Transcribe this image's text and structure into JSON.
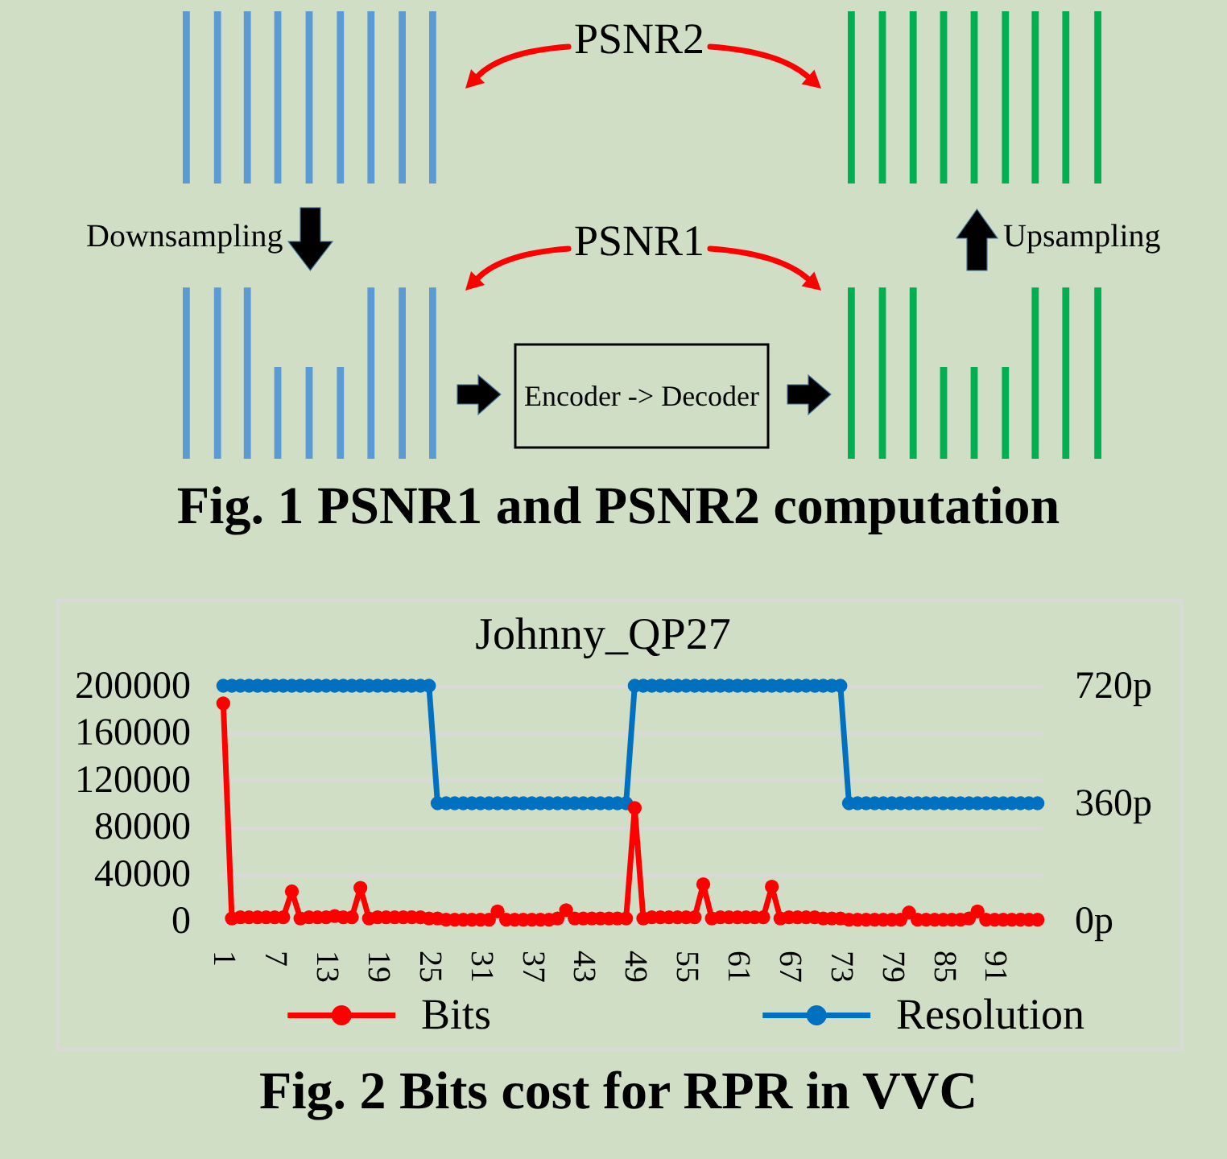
{
  "chart_data": [
    {
      "type": "other",
      "title": "Fig. 1 PSNR1 and PSNR2 computation",
      "annotations": [
        "PSNR2",
        "PSNR1",
        "Downsampling",
        "Upsampling",
        "Encoder -> Decoder"
      ]
    },
    {
      "type": "line",
      "title": "Johnny_QP27",
      "categories": [
        "1",
        null,
        null,
        null,
        null,
        null,
        "7",
        null,
        null,
        null,
        null,
        null,
        "13",
        null,
        null,
        null,
        null,
        null,
        "19",
        null,
        null,
        null,
        null,
        null,
        "25",
        null,
        null,
        null,
        null,
        null,
        "31",
        null,
        null,
        null,
        null,
        null,
        "37",
        null,
        null,
        null,
        null,
        null,
        "43",
        null,
        null,
        null,
        null,
        null,
        "49",
        null,
        null,
        null,
        null,
        null,
        "55",
        null,
        null,
        null,
        null,
        null,
        "61",
        null,
        null,
        null,
        null,
        null,
        "67",
        null,
        null,
        null,
        null,
        null,
        "73",
        null,
        null,
        null,
        null,
        null,
        "79",
        null,
        null,
        null,
        null,
        null,
        "85",
        null,
        null,
        null,
        null,
        null,
        "91",
        null,
        null,
        null,
        null,
        null
      ],
      "series": [
        {
          "name": "Bits",
          "color": "#ff0000",
          "values": [
            185000,
            2000,
            3000,
            3000,
            3000,
            3000,
            3000,
            3000,
            25000,
            2000,
            3000,
            3000,
            3000,
            4000,
            3000,
            3000,
            28000,
            2000,
            3000,
            3000,
            3000,
            3000,
            3000,
            3000,
            2000,
            2000,
            1000,
            1000,
            1000,
            1000,
            1000,
            1000,
            8000,
            1000,
            1000,
            1000,
            1000,
            1000,
            1000,
            2000,
            9000,
            2000,
            2000,
            2000,
            2000,
            2000,
            2000,
            2000,
            96000,
            2000,
            3000,
            3000,
            3000,
            3000,
            3000,
            3000,
            31000,
            2000,
            3000,
            3000,
            3000,
            3000,
            3000,
            3000,
            29000,
            2000,
            3000,
            3000,
            3000,
            3000,
            2000,
            2000,
            2000,
            1000,
            1000,
            1000,
            1000,
            1000,
            1000,
            1000,
            7000,
            1000,
            1000,
            1000,
            1000,
            1000,
            1000,
            2000,
            8000,
            1000,
            1000,
            1000,
            1000,
            1000,
            1000,
            1000
          ]
        },
        {
          "name": "Resolution",
          "color": "#0070c0",
          "axis": "y2",
          "values": [
            720,
            720,
            720,
            720,
            720,
            720,
            720,
            720,
            720,
            720,
            720,
            720,
            720,
            720,
            720,
            720,
            720,
            720,
            720,
            720,
            720,
            720,
            720,
            720,
            720,
            360,
            360,
            360,
            360,
            360,
            360,
            360,
            360,
            360,
            360,
            360,
            360,
            360,
            360,
            360,
            360,
            360,
            360,
            360,
            360,
            360,
            360,
            360,
            720,
            720,
            720,
            720,
            720,
            720,
            720,
            720,
            720,
            720,
            720,
            720,
            720,
            720,
            720,
            720,
            720,
            720,
            720,
            720,
            720,
            720,
            720,
            720,
            720,
            360,
            360,
            360,
            360,
            360,
            360,
            360,
            360,
            360,
            360,
            360,
            360,
            360,
            360,
            360,
            360,
            360,
            360,
            360,
            360,
            360,
            360,
            360
          ]
        }
      ],
      "ylim": [
        0,
        200000
      ],
      "yticks": [
        0,
        40000,
        80000,
        120000,
        160000,
        200000
      ],
      "y2lim": [
        0,
        720
      ],
      "y2ticks": [
        {
          "value": 0,
          "label": "0p"
        },
        {
          "value": 360,
          "label": "360p"
        },
        {
          "value": 720,
          "label": "720p"
        }
      ],
      "grid": "y",
      "legend": "bottom",
      "marker": "circle",
      "annotations": [
        "Fig. 2 Bits cost for RPR in VVC"
      ]
    }
  ]
}
